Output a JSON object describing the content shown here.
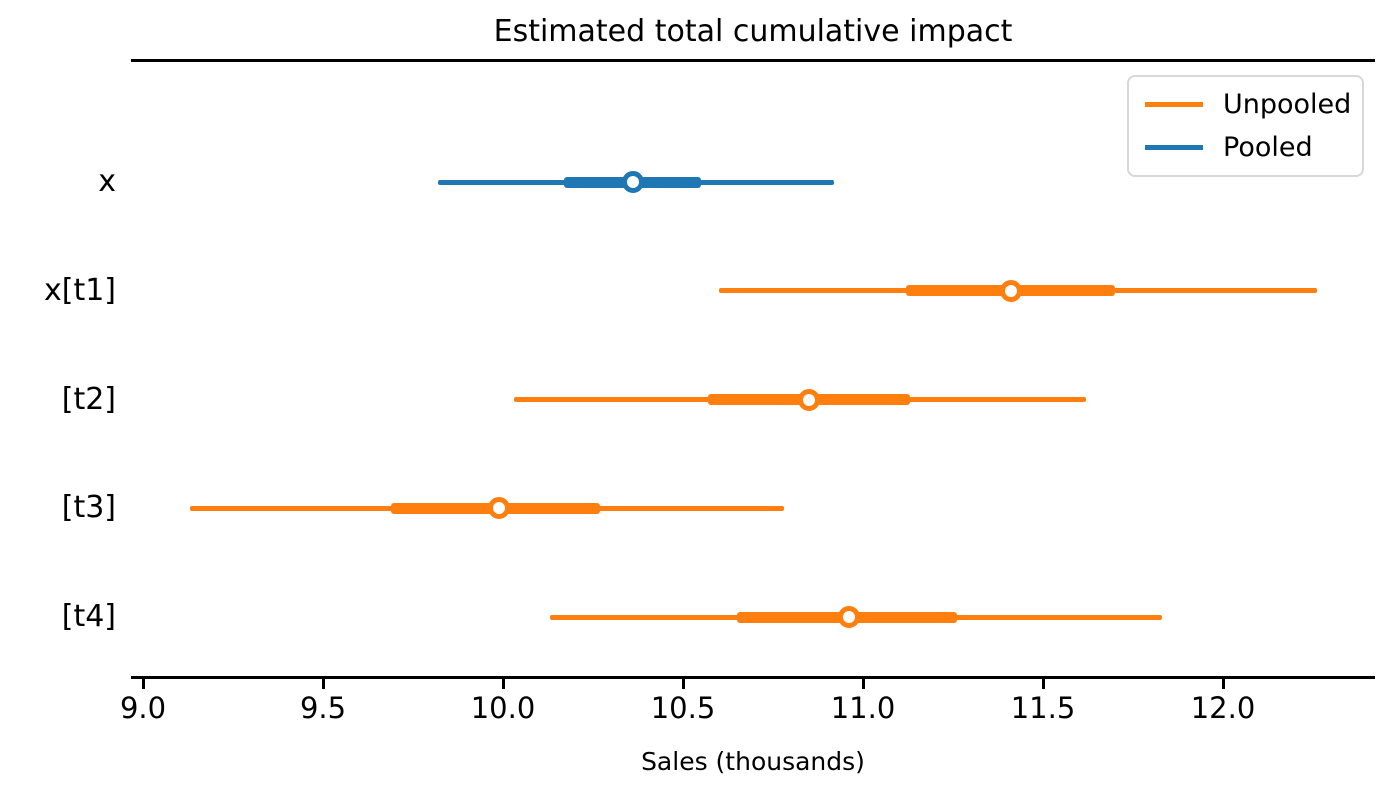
{
  "chart_data": {
    "type": "forest",
    "title": "Estimated total cumulative impact",
    "xlabel": "Sales (thousands)",
    "xlim": [
      8.97,
      12.42
    ],
    "xticks": [
      9.0,
      9.5,
      10.0,
      10.5,
      11.0,
      11.5,
      12.0
    ],
    "xtick_labels": [
      "9.0",
      "9.5",
      "10.0",
      "10.5",
      "11.0",
      "11.5",
      "12.0"
    ],
    "grid": false,
    "legend_position": "upper right",
    "legend": [
      {
        "label": "Unpooled",
        "color": "#ff7f0e"
      },
      {
        "label": "Pooled",
        "color": "#1f77b4"
      }
    ],
    "marker_face_color": "#ffffff",
    "spine_color": "#000000",
    "rows": [
      {
        "label": "x",
        "series": "Pooled",
        "color": "#1f77b4",
        "lower": 9.82,
        "q_lower": 10.17,
        "median": 10.36,
        "q_upper": 10.55,
        "upper": 10.92
      },
      {
        "label": "x[t1]",
        "series": "Unpooled",
        "color": "#ff7f0e",
        "lower": 10.6,
        "q_lower": 11.12,
        "median": 11.41,
        "q_upper": 11.7,
        "upper": 12.26
      },
      {
        "label": "[t2]",
        "series": "Unpooled",
        "color": "#ff7f0e",
        "lower": 10.03,
        "q_lower": 10.57,
        "median": 10.85,
        "q_upper": 11.13,
        "upper": 11.62
      },
      {
        "label": "[t3]",
        "series": "Unpooled",
        "color": "#ff7f0e",
        "lower": 9.13,
        "q_lower": 9.69,
        "median": 9.99,
        "q_upper": 10.27,
        "upper": 10.78
      },
      {
        "label": "[t4]",
        "series": "Unpooled",
        "color": "#ff7f0e",
        "lower": 10.13,
        "q_lower": 10.65,
        "median": 10.96,
        "q_upper": 11.26,
        "upper": 11.83
      }
    ]
  }
}
